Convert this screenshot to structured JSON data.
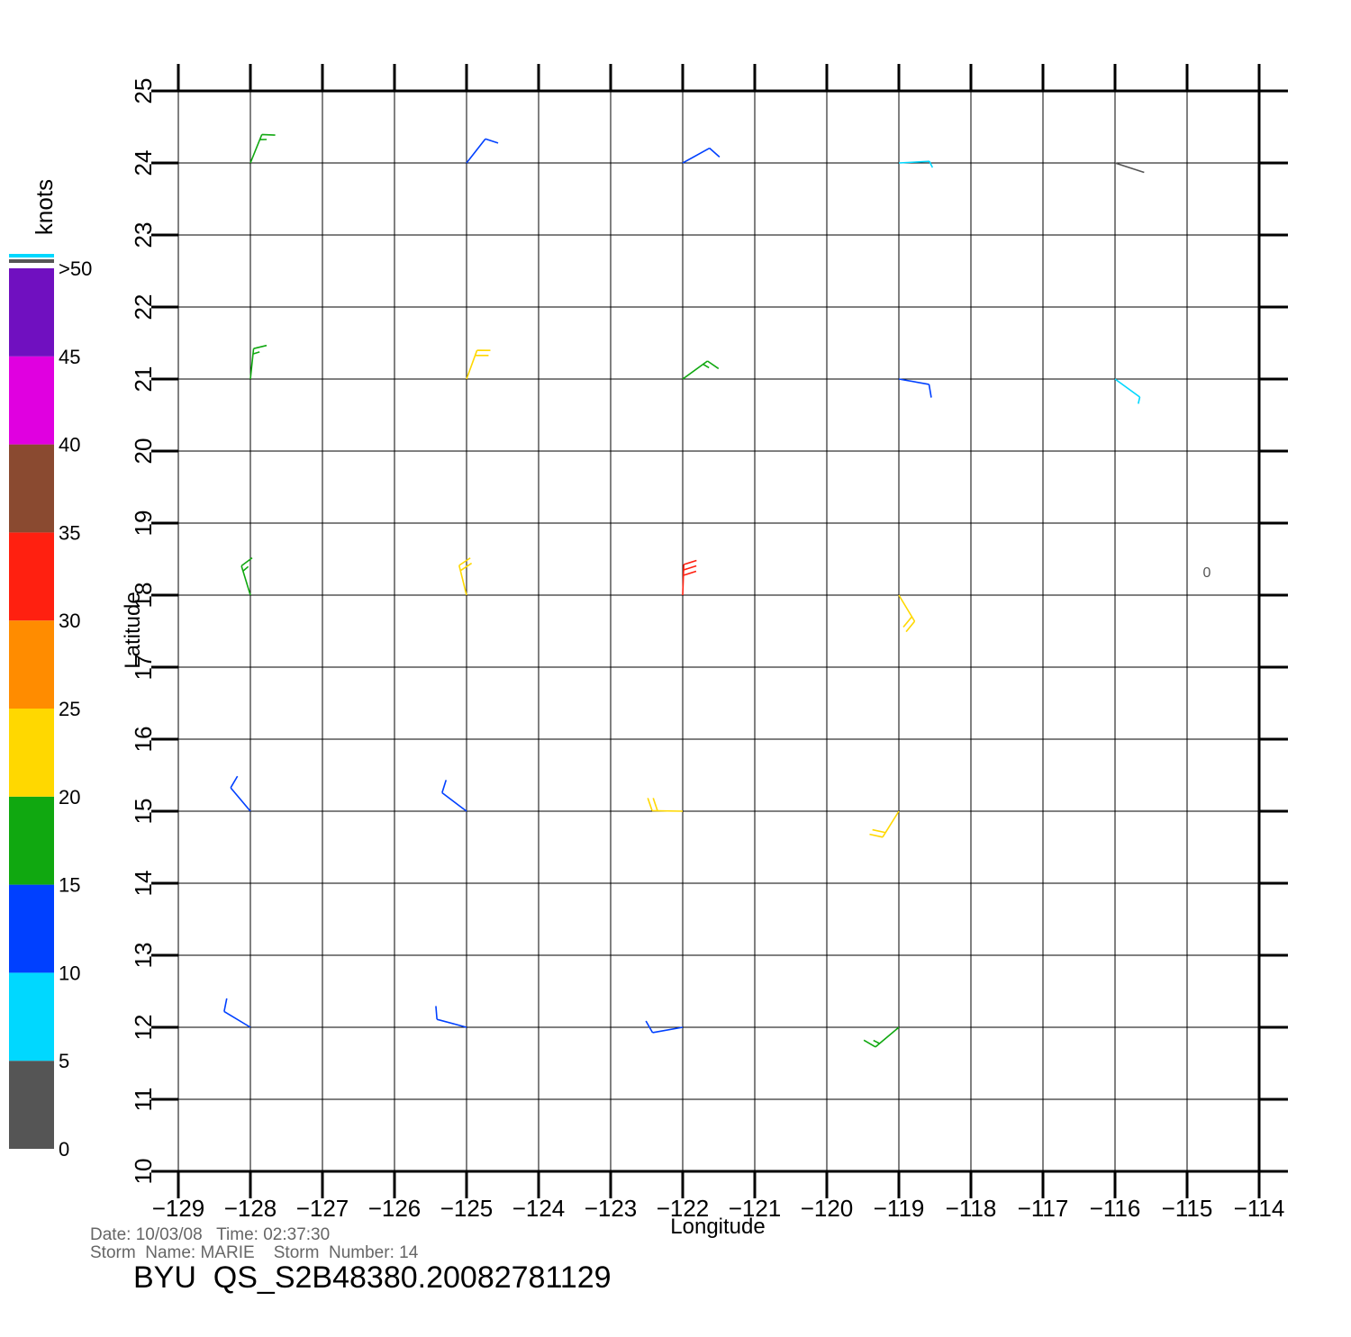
{
  "chart_data": {
    "type": "barb",
    "xlabel": "Longitude",
    "ylabel": "Latitude",
    "xlim": [
      -129,
      -114
    ],
    "ylim": [
      10,
      25
    ],
    "xticks": [
      {
        "value": -129,
        "label": "−129"
      },
      {
        "value": -128,
        "label": "−128"
      },
      {
        "value": -127,
        "label": "−127"
      },
      {
        "value": -126,
        "label": "−126"
      },
      {
        "value": -125,
        "label": "−125"
      },
      {
        "value": -124,
        "label": "−124"
      },
      {
        "value": -123,
        "label": "−123"
      },
      {
        "value": -122,
        "label": "−122"
      },
      {
        "value": -121,
        "label": "−121"
      },
      {
        "value": -120,
        "label": "−120"
      },
      {
        "value": -119,
        "label": "−119"
      },
      {
        "value": -118,
        "label": "−118"
      },
      {
        "value": -117,
        "label": "−117"
      },
      {
        "value": -116,
        "label": "−116"
      },
      {
        "value": -115,
        "label": "−115"
      },
      {
        "value": -114,
        "label": "−114"
      }
    ],
    "yticks": [
      10,
      11,
      12,
      13,
      14,
      15,
      16,
      17,
      18,
      19,
      20,
      21,
      22,
      23,
      24,
      25
    ],
    "grid": true,
    "colorbar": {
      "label": "knots",
      "lim": [
        0,
        50
      ],
      "ticks": [
        0,
        5,
        10,
        15,
        20,
        25,
        30,
        35,
        40,
        45,
        {
          "value": 50,
          "label": ">50"
        }
      ],
      "colors": [
        "#555555",
        "#00d8ff",
        "#0040ff",
        "#10a810",
        "#ffd800",
        "#ff8c00",
        "#ff2010",
        "#8a4a30",
        "#e000e0",
        "#7010c0"
      ]
    },
    "barbs": {
      "lon": [
        -128,
        -125,
        -122,
        -119,
        -116,
        -128,
        -125,
        -122,
        -119,
        -116,
        -128,
        -125,
        -122,
        -119,
        -128,
        -125,
        -122,
        -119,
        -128,
        -125,
        -122,
        -119
      ],
      "lat": [
        24,
        24,
        24,
        24,
        24,
        21,
        21,
        21,
        21,
        21,
        18,
        18,
        18,
        18,
        15,
        15,
        15,
        15,
        12,
        12,
        12,
        12
      ],
      "speed": [
        17,
        13,
        12,
        8,
        4,
        18,
        20,
        17,
        13,
        7,
        17,
        21,
        32,
        20,
        13,
        14,
        22,
        22,
        11,
        11,
        14,
        16
      ],
      "direction": [
        22,
        38,
        61,
        87,
        108,
        6,
        20,
        54,
        100,
        126,
        343,
        346,
        2,
        149,
        320,
        307,
        271,
        212,
        301,
        285,
        260,
        230
      ]
    },
    "annotations": [
      "0"
    ],
    "footer": {
      "date_line": "Date: 10/03/08   Time: 02:37:30",
      "storm_line": "Storm  Name: MARIE    Storm  Number: 14",
      "file": "BYU  QS_S2B48380.20082781129"
    }
  }
}
